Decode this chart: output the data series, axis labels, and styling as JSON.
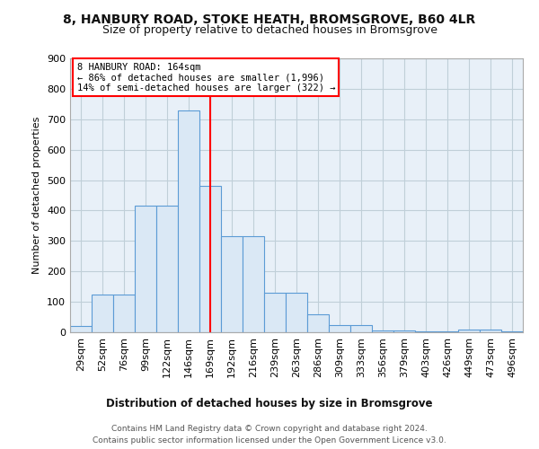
{
  "title_line1": "8, HANBURY ROAD, STOKE HEATH, BROMSGROVE, B60 4LR",
  "title_line2": "Size of property relative to detached houses in Bromsgrove",
  "xlabel": "Distribution of detached houses by size in Bromsgrove",
  "ylabel": "Number of detached properties",
  "categories": [
    "29sqm",
    "52sqm",
    "76sqm",
    "99sqm",
    "122sqm",
    "146sqm",
    "169sqm",
    "192sqm",
    "216sqm",
    "239sqm",
    "263sqm",
    "286sqm",
    "309sqm",
    "333sqm",
    "356sqm",
    "379sqm",
    "403sqm",
    "426sqm",
    "449sqm",
    "473sqm",
    "496sqm"
  ],
  "values": [
    20,
    125,
    125,
    415,
    415,
    730,
    480,
    315,
    315,
    130,
    130,
    60,
    25,
    25,
    5,
    5,
    2,
    2,
    10,
    10,
    2
  ],
  "bar_color": "#dae8f5",
  "bar_edge_color": "#5b9bd5",
  "vline_color": "red",
  "vline_x_index": 6,
  "annotation_text_line1": "8 HANBURY ROAD: 164sqm",
  "annotation_text_line2": "← 86% of detached houses are smaller (1,996)",
  "annotation_text_line3": "14% of semi-detached houses are larger (322) →",
  "annotation_box_color": "white",
  "annotation_box_edge_color": "red",
  "footer_line1": "Contains HM Land Registry data © Crown copyright and database right 2024.",
  "footer_line2": "Contains public sector information licensed under the Open Government Licence v3.0.",
  "ylim": [
    0,
    900
  ],
  "yticks": [
    0,
    100,
    200,
    300,
    400,
    500,
    600,
    700,
    800,
    900
  ],
  "plot_bg_color": "#e8f0f8",
  "fig_bg_color": "#ffffff",
  "grid_color": "#c0cfd8"
}
